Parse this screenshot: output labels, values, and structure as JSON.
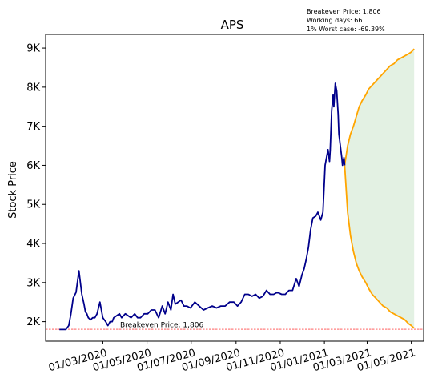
{
  "chart_data": {
    "type": "line",
    "title": "APS",
    "ylabel": "Stock Price",
    "xlabel": "",
    "info_lines": [
      "Breakeven Price: 1,806",
      "Working days: 66",
      "1% Worst case: -69.39%"
    ],
    "breakeven": {
      "value": 1806,
      "label": "Breakeven Price: 1,806",
      "color": "#ff0000"
    },
    "ylim": [
      1500,
      9350
    ],
    "y_ticks": [
      {
        "value": 2000,
        "label": "2K"
      },
      {
        "value": 3000,
        "label": "3K"
      },
      {
        "value": 4000,
        "label": "4K"
      },
      {
        "value": 5000,
        "label": "5K"
      },
      {
        "value": 6000,
        "label": "6K"
      },
      {
        "value": 7000,
        "label": "7K"
      },
      {
        "value": 8000,
        "label": "8K"
      },
      {
        "value": 9000,
        "label": "9K"
      }
    ],
    "xlim": [
      "2019-12-13",
      "2021-05-18"
    ],
    "x_ticks": [
      {
        "date": "2020-03-01",
        "label": "01/03/2020"
      },
      {
        "date": "2020-05-01",
        "label": "01/05/2020"
      },
      {
        "date": "2020-07-01",
        "label": "01/07/2020"
      },
      {
        "date": "2020-09-01",
        "label": "01/09/2020"
      },
      {
        "date": "2020-11-01",
        "label": "01/11/2020"
      },
      {
        "date": "2021-01-01",
        "label": "01/01/2021"
      },
      {
        "date": "2021-03-01",
        "label": "01/03/2021"
      },
      {
        "date": "2021-05-01",
        "label": "01/05/2021"
      }
    ],
    "grid": false,
    "colors": {
      "history": "#00008b",
      "projection": "#ffa500",
      "band_fill": "#d9ecd9"
    },
    "series": [
      {
        "key": "history",
        "x": [
          "2020-01-01",
          "2020-01-06",
          "2020-01-10",
          "2020-01-14",
          "2020-01-17",
          "2020-01-20",
          "2020-01-24",
          "2020-01-28",
          "2020-02-01",
          "2020-02-04",
          "2020-02-06",
          "2020-02-08",
          "2020-02-10",
          "2020-02-13",
          "2020-02-16",
          "2020-02-19",
          "2020-02-22",
          "2020-02-26",
          "2020-03-01",
          "2020-03-05",
          "2020-03-08",
          "2020-03-11",
          "2020-03-14",
          "2020-03-16",
          "2020-03-20",
          "2020-03-24",
          "2020-03-27",
          "2020-04-01",
          "2020-04-05",
          "2020-04-09",
          "2020-04-14",
          "2020-04-18",
          "2020-04-22",
          "2020-04-27",
          "2020-05-02",
          "2020-05-07",
          "2020-05-12",
          "2020-05-17",
          "2020-05-22",
          "2020-05-26",
          "2020-05-30",
          "2020-06-03",
          "2020-06-06",
          "2020-06-09",
          "2020-06-13",
          "2020-06-17",
          "2020-06-21",
          "2020-06-25",
          "2020-06-30",
          "2020-07-06",
          "2020-07-12",
          "2020-07-18",
          "2020-07-24",
          "2020-07-30",
          "2020-08-05",
          "2020-08-11",
          "2020-08-17",
          "2020-08-23",
          "2020-08-29",
          "2020-09-03",
          "2020-09-08",
          "2020-09-13",
          "2020-09-18",
          "2020-09-23",
          "2020-09-28",
          "2020-10-03",
          "2020-10-08",
          "2020-10-13",
          "2020-10-18",
          "2020-10-23",
          "2020-10-28",
          "2020-11-03",
          "2020-11-08",
          "2020-11-13",
          "2020-11-18",
          "2020-11-23",
          "2020-11-27",
          "2020-12-01",
          "2020-12-04",
          "2020-12-07",
          "2020-12-10",
          "2020-12-13",
          "2020-12-16",
          "2020-12-20",
          "2020-12-23",
          "2020-12-27",
          "2020-12-30",
          "2021-01-02",
          "2021-01-04",
          "2021-01-06",
          "2021-01-08",
          "2021-01-09",
          "2021-01-11",
          "2021-01-13",
          "2021-01-14",
          "2021-01-16",
          "2021-01-18",
          "2021-01-20",
          "2021-01-21",
          "2021-01-23",
          "2021-01-25",
          "2021-01-26",
          "2021-01-28",
          "2021-01-29"
        ],
        "y": [
          1800,
          1800,
          1800,
          1900,
          2200,
          2600,
          2750,
          3300,
          2700,
          2450,
          2250,
          2200,
          2100,
          2050,
          2100,
          2100,
          2200,
          2500,
          2100,
          2000,
          1900,
          2000,
          2000,
          2100,
          2150,
          2200,
          2100,
          2200,
          2150,
          2100,
          2200,
          2100,
          2100,
          2200,
          2200,
          2300,
          2300,
          2100,
          2400,
          2200,
          2500,
          2300,
          2700,
          2450,
          2500,
          2550,
          2400,
          2400,
          2350,
          2500,
          2400,
          2300,
          2350,
          2400,
          2350,
          2400,
          2400,
          2500,
          2500,
          2400,
          2500,
          2700,
          2700,
          2650,
          2700,
          2600,
          2650,
          2800,
          2700,
          2700,
          2750,
          2700,
          2700,
          2800,
          2800,
          3100,
          2900,
          3200,
          3350,
          3600,
          3900,
          4350,
          4650,
          4700,
          4800,
          4600,
          4800,
          6000,
          6200,
          6400,
          6100,
          6400,
          7400,
          7800,
          7500,
          8100,
          7900,
          7300,
          6800,
          6500,
          6200,
          6000,
          6200,
          6000
        ]
      },
      {
        "key": "projection_upper",
        "x": [
          "2021-01-29",
          "2021-02-02",
          "2021-02-06",
          "2021-02-10",
          "2021-02-14",
          "2021-02-18",
          "2021-02-22",
          "2021-02-27",
          "2021-03-03",
          "2021-03-08",
          "2021-03-13",
          "2021-03-18",
          "2021-03-23",
          "2021-03-28",
          "2021-04-02",
          "2021-04-07",
          "2021-04-12",
          "2021-04-17",
          "2021-04-22",
          "2021-04-27",
          "2021-05-01",
          "2021-05-05"
        ],
        "y": [
          6000,
          6500,
          6800,
          7000,
          7250,
          7500,
          7650,
          7800,
          7950,
          8050,
          8150,
          8250,
          8350,
          8450,
          8550,
          8600,
          8700,
          8750,
          8800,
          8850,
          8900,
          8980
        ]
      },
      {
        "key": "projection_lower",
        "x": [
          "2021-01-29",
          "2021-02-02",
          "2021-02-06",
          "2021-02-10",
          "2021-02-14",
          "2021-02-18",
          "2021-02-22",
          "2021-02-27",
          "2021-03-03",
          "2021-03-08",
          "2021-03-13",
          "2021-03-18",
          "2021-03-23",
          "2021-03-28",
          "2021-04-02",
          "2021-04-07",
          "2021-04-12",
          "2021-04-17",
          "2021-04-22",
          "2021-04-27",
          "2021-05-01",
          "2021-05-05"
        ],
        "y": [
          6000,
          4800,
          4200,
          3800,
          3500,
          3300,
          3150,
          3000,
          2850,
          2700,
          2600,
          2500,
          2400,
          2350,
          2250,
          2200,
          2150,
          2100,
          2050,
          1950,
          1900,
          1830
        ]
      }
    ]
  }
}
